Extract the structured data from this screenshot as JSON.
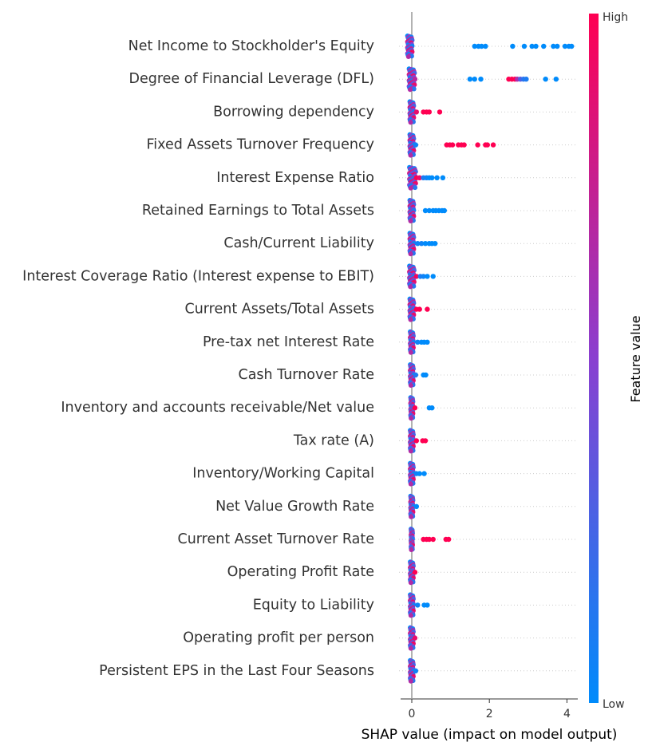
{
  "chart_data": {
    "type": "scatter",
    "subtype": "shap-beeswarm-summary",
    "title": "",
    "xlabel": "SHAP value (impact on model output)",
    "ylabel": "",
    "xlim": [
      -0.3,
      4.4
    ],
    "xticks": [
      0,
      2,
      4
    ],
    "grid": "dotted horizontal row lines",
    "colorbar": {
      "title": "Feature value",
      "high_label": "High",
      "low_label": "Low",
      "high_color": "#ff0052",
      "low_color": "#008bfb"
    },
    "features": [
      {
        "name": "Net Income to Stockholder's Equity",
        "points": [
          {
            "x": -0.05,
            "v": 0.5,
            "n": 40,
            "spread": 0.06
          },
          {
            "x": 1.62,
            "v": 0.0
          },
          {
            "x": 1.72,
            "v": 0.0
          },
          {
            "x": 1.8,
            "v": 0.0
          },
          {
            "x": 1.9,
            "v": 0.0
          },
          {
            "x": 2.6,
            "v": 0.0
          },
          {
            "x": 2.9,
            "v": 0.0
          },
          {
            "x": 3.1,
            "v": 0.0
          },
          {
            "x": 3.2,
            "v": 0.0
          },
          {
            "x": 3.4,
            "v": 0.0
          },
          {
            "x": 3.65,
            "v": 0.0
          },
          {
            "x": 3.75,
            "v": 0.0
          },
          {
            "x": 3.95,
            "v": 0.0
          },
          {
            "x": 4.05,
            "v": 0.0
          },
          {
            "x": 4.12,
            "v": 0.0
          }
        ]
      },
      {
        "name": "Degree of Financial Leverage (DFL)",
        "points": [
          {
            "x": 0.0,
            "v": 0.5,
            "n": 40,
            "spread": 0.07
          },
          {
            "x": 0.08,
            "v": 0.7
          },
          {
            "x": 1.5,
            "v": 0.0
          },
          {
            "x": 1.62,
            "v": 0.0
          },
          {
            "x": 1.78,
            "v": 0.0
          },
          {
            "x": 2.5,
            "v": 1.0
          },
          {
            "x": 2.58,
            "v": 1.0
          },
          {
            "x": 2.66,
            "v": 1.0
          },
          {
            "x": 2.72,
            "v": 0.65
          },
          {
            "x": 2.8,
            "v": 0.3
          },
          {
            "x": 2.88,
            "v": 0.15
          },
          {
            "x": 2.95,
            "v": 0.1
          },
          {
            "x": 3.45,
            "v": 0.0
          },
          {
            "x": 3.72,
            "v": 0.0
          }
        ]
      },
      {
        "name": "Borrowing dependency",
        "points": [
          {
            "x": 0.0,
            "v": 0.25,
            "n": 40,
            "spread": 0.05
          },
          {
            "x": 0.12,
            "v": 0.9
          },
          {
            "x": 0.3,
            "v": 1.0
          },
          {
            "x": 0.38,
            "v": 1.0
          },
          {
            "x": 0.45,
            "v": 1.0
          },
          {
            "x": 0.72,
            "v": 1.0
          }
        ]
      },
      {
        "name": "Fixed Assets Turnover Frequency",
        "points": [
          {
            "x": 0.0,
            "v": 0.3,
            "n": 40,
            "spread": 0.05
          },
          {
            "x": 0.1,
            "v": 0.05
          },
          {
            "x": 0.9,
            "v": 1.0
          },
          {
            "x": 0.98,
            "v": 1.0
          },
          {
            "x": 1.05,
            "v": 1.0
          },
          {
            "x": 1.2,
            "v": 1.0
          },
          {
            "x": 1.28,
            "v": 1.0
          },
          {
            "x": 1.35,
            "v": 1.0
          },
          {
            "x": 1.7,
            "v": 1.0
          },
          {
            "x": 1.9,
            "v": 1.0
          },
          {
            "x": 1.95,
            "v": 1.0
          },
          {
            "x": 2.1,
            "v": 1.0
          }
        ]
      },
      {
        "name": "Interest Expense Ratio",
        "points": [
          {
            "x": 0.02,
            "v": 0.5,
            "n": 40,
            "spread": 0.08
          },
          {
            "x": 0.12,
            "v": 1.0
          },
          {
            "x": 0.2,
            "v": 0.9
          },
          {
            "x": 0.3,
            "v": 0.1
          },
          {
            "x": 0.38,
            "v": 0.05
          },
          {
            "x": 0.45,
            "v": 0.0
          },
          {
            "x": 0.52,
            "v": 0.0
          },
          {
            "x": 0.65,
            "v": 0.0
          },
          {
            "x": 0.8,
            "v": 0.0
          }
        ]
      },
      {
        "name": "Retained Earnings to Total Assets",
        "points": [
          {
            "x": 0.0,
            "v": 0.5,
            "n": 40,
            "spread": 0.05
          },
          {
            "x": 0.35,
            "v": 0.0
          },
          {
            "x": 0.45,
            "v": 0.0
          },
          {
            "x": 0.55,
            "v": 0.0
          },
          {
            "x": 0.62,
            "v": 0.0
          },
          {
            "x": 0.7,
            "v": 0.0
          },
          {
            "x": 0.78,
            "v": 0.0
          },
          {
            "x": 0.84,
            "v": 0.0
          }
        ]
      },
      {
        "name": "Cash/Current Liability",
        "points": [
          {
            "x": 0.0,
            "v": 0.5,
            "n": 40,
            "spread": 0.05
          },
          {
            "x": 0.15,
            "v": 0.05
          },
          {
            "x": 0.25,
            "v": 0.05
          },
          {
            "x": 0.35,
            "v": 0.0
          },
          {
            "x": 0.45,
            "v": 0.0
          },
          {
            "x": 0.52,
            "v": 0.0
          },
          {
            "x": 0.6,
            "v": 0.0
          }
        ]
      },
      {
        "name": "Interest Coverage Ratio (Interest expense to EBIT)",
        "points": [
          {
            "x": 0.0,
            "v": 0.5,
            "n": 40,
            "spread": 0.06
          },
          {
            "x": 0.12,
            "v": 0.95
          },
          {
            "x": 0.22,
            "v": 0.1
          },
          {
            "x": 0.3,
            "v": 0.05
          },
          {
            "x": 0.4,
            "v": 0.0
          },
          {
            "x": 0.55,
            "v": 0.0
          }
        ]
      },
      {
        "name": "Current Assets/Total Assets",
        "points": [
          {
            "x": 0.0,
            "v": 0.5,
            "n": 40,
            "spread": 0.05
          },
          {
            "x": 0.12,
            "v": 1.0
          },
          {
            "x": 0.2,
            "v": 1.0
          },
          {
            "x": 0.4,
            "v": 1.0
          }
        ]
      },
      {
        "name": "Pre-tax net Interest Rate",
        "points": [
          {
            "x": 0.0,
            "v": 0.6,
            "n": 40,
            "spread": 0.04
          },
          {
            "x": 0.15,
            "v": 0.05
          },
          {
            "x": 0.25,
            "v": 0.0
          },
          {
            "x": 0.32,
            "v": 0.0
          },
          {
            "x": 0.4,
            "v": 0.0
          }
        ]
      },
      {
        "name": "Cash Turnover Rate",
        "points": [
          {
            "x": 0.0,
            "v": 0.6,
            "n": 40,
            "spread": 0.04
          },
          {
            "x": 0.1,
            "v": 0.1
          },
          {
            "x": 0.3,
            "v": 0.0
          },
          {
            "x": 0.36,
            "v": 0.0
          }
        ]
      },
      {
        "name": "Inventory and accounts receivable/Net value",
        "points": [
          {
            "x": 0.0,
            "v": 0.5,
            "n": 40,
            "spread": 0.03
          },
          {
            "x": 0.08,
            "v": 1.0
          },
          {
            "x": 0.45,
            "v": 0.0
          },
          {
            "x": 0.52,
            "v": 0.0
          }
        ]
      },
      {
        "name": "Tax rate (A)",
        "points": [
          {
            "x": 0.0,
            "v": 0.45,
            "n": 40,
            "spread": 0.04
          },
          {
            "x": 0.12,
            "v": 1.0
          },
          {
            "x": 0.28,
            "v": 1.0
          },
          {
            "x": 0.35,
            "v": 1.0
          }
        ]
      },
      {
        "name": "Inventory/Working Capital",
        "points": [
          {
            "x": 0.0,
            "v": 0.5,
            "n": 40,
            "spread": 0.04
          },
          {
            "x": 0.12,
            "v": 0.05
          },
          {
            "x": 0.2,
            "v": 0.0
          },
          {
            "x": 0.32,
            "v": 0.0
          }
        ]
      },
      {
        "name": "Net Value Growth Rate",
        "points": [
          {
            "x": 0.0,
            "v": 0.5,
            "n": 40,
            "spread": 0.03
          },
          {
            "x": 0.12,
            "v": 0.0
          }
        ]
      },
      {
        "name": "Current Asset Turnover Rate",
        "points": [
          {
            "x": 0.0,
            "v": 0.4,
            "n": 40,
            "spread": 0.02
          },
          {
            "x": 0.3,
            "v": 1.0
          },
          {
            "x": 0.38,
            "v": 1.0
          },
          {
            "x": 0.45,
            "v": 1.0
          },
          {
            "x": 0.55,
            "v": 1.0
          },
          {
            "x": 0.88,
            "v": 1.0
          },
          {
            "x": 0.95,
            "v": 1.0
          }
        ]
      },
      {
        "name": "Operating Profit Rate",
        "points": [
          {
            "x": 0.0,
            "v": 0.6,
            "n": 40,
            "spread": 0.04
          },
          {
            "x": 0.08,
            "v": 1.0
          }
        ]
      },
      {
        "name": "Equity to Liability",
        "points": [
          {
            "x": 0.0,
            "v": 0.5,
            "n": 40,
            "spread": 0.04
          },
          {
            "x": 0.15,
            "v": 0.05
          },
          {
            "x": 0.32,
            "v": 0.0
          },
          {
            "x": 0.4,
            "v": 0.0
          }
        ]
      },
      {
        "name": "Operating profit per person",
        "points": [
          {
            "x": 0.0,
            "v": 0.5,
            "n": 40,
            "spread": 0.04
          },
          {
            "x": 0.08,
            "v": 0.9
          }
        ]
      },
      {
        "name": "Persistent EPS in the Last Four Seasons",
        "points": [
          {
            "x": 0.0,
            "v": 0.5,
            "n": 40,
            "spread": 0.04
          },
          {
            "x": 0.1,
            "v": 0.05
          }
        ]
      }
    ]
  }
}
